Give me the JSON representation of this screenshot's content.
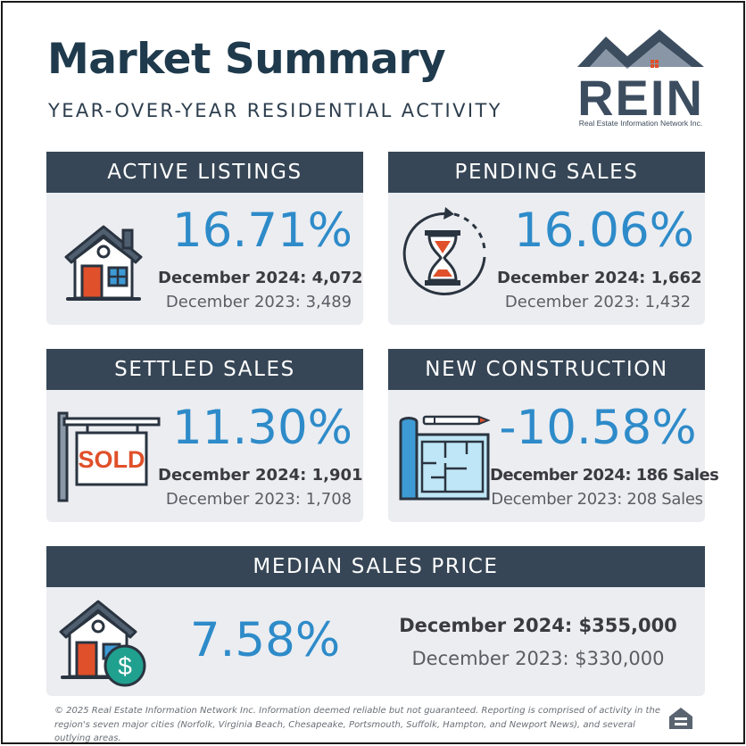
{
  "header": {
    "title": "Market Summary",
    "subtitle": "YEAR-OVER-YEAR RESIDENTIAL ACTIVITY"
  },
  "logo": {
    "name": "REIN",
    "tagline": "Real Estate Information Network Inc."
  },
  "cards": {
    "active_listings": {
      "title": "ACTIVE LISTINGS",
      "change": "16.71%",
      "current": "December 2024: 4,072",
      "prior": "December 2023: 3,489",
      "icon": "house-icon"
    },
    "pending_sales": {
      "title": "PENDING SALES",
      "change": "16.06%",
      "current": "December 2024: 1,662",
      "prior": "December 2023: 1,432",
      "icon": "hourglass-icon"
    },
    "settled_sales": {
      "title": "SETTLED SALES",
      "change": "11.30%",
      "current": "December 2024: 1,901",
      "prior": "December 2023: 1,708",
      "icon": "sold-sign-icon",
      "sign_text": "SOLD"
    },
    "new_construction": {
      "title": "NEW CONSTRUCTION",
      "change": "-10.58%",
      "current": "December 2024: 186 Sales",
      "prior": "December 2023: 208 Sales",
      "icon": "blueprint-icon"
    },
    "median_price": {
      "title": "MEDIAN SALES PRICE",
      "change": "7.58%",
      "current": "December 2024: $355,000",
      "prior": "December 2023: $330,000",
      "icon": "house-dollar-icon",
      "coin_symbol": "$"
    }
  },
  "footer": {
    "disclaimer": "© 2025 Real Estate Information Network Inc. Information deemed reliable but not guaranteed. Reporting is comprised of activity in the region's seven major cities (Norfolk, Virginia Beach, Chesapeake, Portsmouth, Suffolk, Hampton, and Newport News), and several outlying areas.",
    "badge_icon": "equal-housing-icon"
  },
  "colors": {
    "navy": "#364656",
    "accent_blue": "#2e8bc9",
    "card_bg": "#ecedf1",
    "door_orange": "#e0502a",
    "teal": "#20a08f"
  }
}
